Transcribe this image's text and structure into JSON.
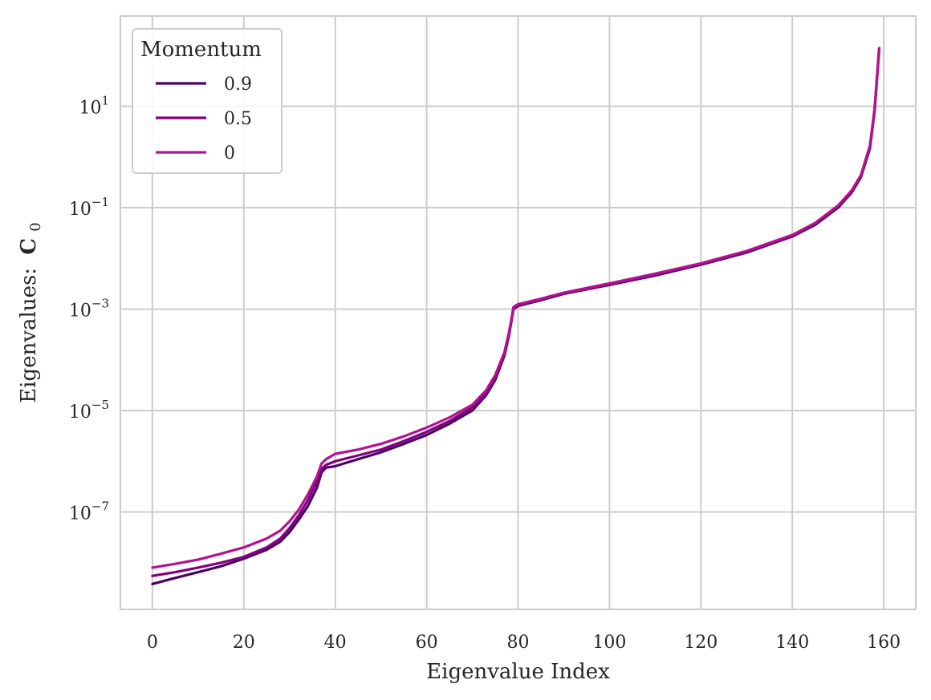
{
  "chart_data": {
    "type": "line",
    "xlabel": "Eigenvalue Index",
    "ylabel": "Eigenvalues:",
    "ylabel_symbol": "C",
    "ylabel_subscript": "0",
    "yscale": "log",
    "xlim": [
      -7,
      167
    ],
    "ylim": [
      1.2e-09,
      600
    ],
    "x_ticks": [
      0,
      20,
      40,
      60,
      80,
      100,
      120,
      140,
      160
    ],
    "y_ticks": [
      {
        "value": 1e-07,
        "base": "10",
        "exp": "−7"
      },
      {
        "value": 1e-05,
        "base": "10",
        "exp": "−5"
      },
      {
        "value": 0.001,
        "base": "10",
        "exp": "−3"
      },
      {
        "value": 0.1,
        "base": "10",
        "exp": "−1"
      },
      {
        "value": 10,
        "base": "10",
        "exp": "1"
      }
    ],
    "grid": true,
    "legend": {
      "title": "Momentum",
      "placement": "top-left"
    },
    "series": [
      {
        "name": "0.9",
        "color": "#4a0068",
        "points": [
          [
            0,
            3.8e-09
          ],
          [
            5,
            5e-09
          ],
          [
            10,
            6.5e-09
          ],
          [
            15,
            8.5e-09
          ],
          [
            20,
            1.2e-08
          ],
          [
            25,
            1.8e-08
          ],
          [
            28,
            2.6e-08
          ],
          [
            30,
            4e-08
          ],
          [
            32,
            7e-08
          ],
          [
            34,
            1.3e-07
          ],
          [
            36,
            3e-07
          ],
          [
            37,
            6e-07
          ],
          [
            38,
            7.5e-07
          ],
          [
            40,
            8e-07
          ],
          [
            45,
            1.1e-06
          ],
          [
            50,
            1.5e-06
          ],
          [
            55,
            2.2e-06
          ],
          [
            60,
            3.3e-06
          ],
          [
            65,
            5.5e-06
          ],
          [
            70,
            1e-05
          ],
          [
            73,
            2e-05
          ],
          [
            75,
            4e-05
          ],
          [
            77,
            0.00012
          ],
          [
            78,
            0.0003
          ],
          [
            79,
            0.001
          ],
          [
            80,
            0.00115
          ],
          [
            85,
            0.0015
          ],
          [
            90,
            0.002
          ],
          [
            100,
            0.003
          ],
          [
            110,
            0.0046
          ],
          [
            120,
            0.0075
          ],
          [
            130,
            0.013
          ],
          [
            140,
            0.027
          ],
          [
            145,
            0.046
          ],
          [
            150,
            0.1
          ],
          [
            153,
            0.2
          ],
          [
            155,
            0.4
          ],
          [
            157,
            1.5
          ],
          [
            158,
            8
          ],
          [
            159,
            130
          ]
        ]
      },
      {
        "name": "0.5",
        "color": "#84007f",
        "points": [
          [
            0,
            5.5e-09
          ],
          [
            5,
            6.5e-09
          ],
          [
            10,
            8e-09
          ],
          [
            15,
            1e-08
          ],
          [
            20,
            1.3e-08
          ],
          [
            25,
            2e-08
          ],
          [
            28,
            3e-08
          ],
          [
            30,
            4.8e-08
          ],
          [
            32,
            8.5e-08
          ],
          [
            34,
            1.7e-07
          ],
          [
            36,
            4e-07
          ],
          [
            37,
            7e-07
          ],
          [
            38,
            8.5e-07
          ],
          [
            40,
            1e-06
          ],
          [
            45,
            1.3e-06
          ],
          [
            50,
            1.7e-06
          ],
          [
            55,
            2.5e-06
          ],
          [
            60,
            3.8e-06
          ],
          [
            65,
            6.2e-06
          ],
          [
            70,
            1.15e-05
          ],
          [
            73,
            2.2e-05
          ],
          [
            75,
            4.5e-05
          ],
          [
            77,
            0.00013
          ],
          [
            78,
            0.00032
          ],
          [
            79,
            0.00105
          ],
          [
            80,
            0.0012
          ],
          [
            85,
            0.00155
          ],
          [
            90,
            0.00205
          ],
          [
            100,
            0.0031
          ],
          [
            110,
            0.0048
          ],
          [
            120,
            0.0078
          ],
          [
            130,
            0.0135
          ],
          [
            140,
            0.028
          ],
          [
            145,
            0.048
          ],
          [
            150,
            0.105
          ],
          [
            153,
            0.21
          ],
          [
            155,
            0.42
          ],
          [
            157,
            1.6
          ],
          [
            158,
            8.5
          ],
          [
            159,
            135
          ]
        ]
      },
      {
        "name": "0",
        "color": "#b3128f",
        "points": [
          [
            0,
            8e-09
          ],
          [
            5,
            9.5e-09
          ],
          [
            10,
            1.15e-08
          ],
          [
            15,
            1.5e-08
          ],
          [
            20,
            2e-08
          ],
          [
            25,
            3e-08
          ],
          [
            28,
            4.3e-08
          ],
          [
            30,
            6.5e-08
          ],
          [
            32,
            1.1e-07
          ],
          [
            34,
            2.2e-07
          ],
          [
            36,
            5e-07
          ],
          [
            37,
            9e-07
          ],
          [
            38,
            1.1e-06
          ],
          [
            40,
            1.4e-06
          ],
          [
            45,
            1.7e-06
          ],
          [
            50,
            2.2e-06
          ],
          [
            55,
            3.1e-06
          ],
          [
            60,
            4.6e-06
          ],
          [
            65,
            7.3e-06
          ],
          [
            70,
            1.3e-05
          ],
          [
            73,
            2.5e-05
          ],
          [
            75,
            5e-05
          ],
          [
            77,
            0.00014
          ],
          [
            78,
            0.00034
          ],
          [
            79,
            0.0011
          ],
          [
            80,
            0.00125
          ],
          [
            85,
            0.0016
          ],
          [
            90,
            0.0021
          ],
          [
            100,
            0.0032
          ],
          [
            110,
            0.005
          ],
          [
            120,
            0.008
          ],
          [
            130,
            0.014
          ],
          [
            140,
            0.029
          ],
          [
            145,
            0.05
          ],
          [
            150,
            0.11
          ],
          [
            153,
            0.22
          ],
          [
            155,
            0.44
          ],
          [
            157,
            1.7
          ],
          [
            158,
            9
          ],
          [
            159,
            140
          ]
        ]
      }
    ]
  }
}
